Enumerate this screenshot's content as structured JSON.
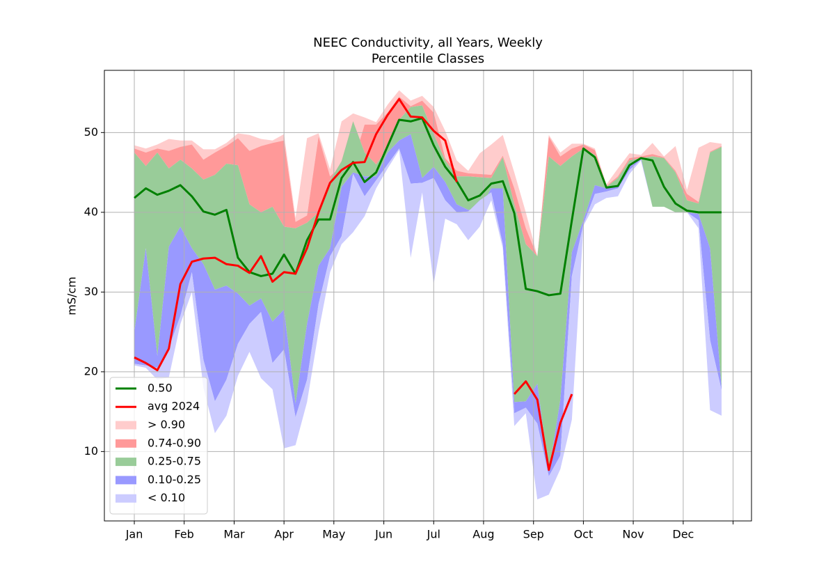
{
  "chart_data": {
    "type": "percentile-bands",
    "title": "NEEC Conductivity, all Years, Weekly",
    "subtitle": "Percentile Classes",
    "ylabel": "mS/cm",
    "x": [
      0,
      1,
      2,
      3,
      4,
      5,
      6,
      7,
      8,
      9,
      10,
      11,
      12,
      13,
      14,
      15,
      16,
      17,
      18,
      19,
      20,
      21,
      22,
      23,
      24,
      25,
      26,
      27,
      28,
      29,
      30,
      31,
      32,
      33,
      34,
      35,
      36,
      37,
      38,
      39,
      40,
      41,
      42,
      43,
      44,
      45,
      46,
      47,
      48,
      49,
      50,
      51
    ],
    "xlim": [
      -2.6,
      53.6
    ],
    "xticks": [
      {
        "value": 0,
        "label": "Jan"
      },
      {
        "value": 4.33,
        "label": "Feb"
      },
      {
        "value": 8.67,
        "label": "Mar"
      },
      {
        "value": 13,
        "label": "Apr"
      },
      {
        "value": 17.33,
        "label": "May"
      },
      {
        "value": 21.67,
        "label": "Jun"
      },
      {
        "value": 26,
        "label": "Jul"
      },
      {
        "value": 30.33,
        "label": "Aug"
      },
      {
        "value": 34.67,
        "label": "Sep"
      },
      {
        "value": 39,
        "label": "Oct"
      },
      {
        "value": 43.33,
        "label": "Nov"
      },
      {
        "value": 47.67,
        "label": "Dec"
      },
      {
        "value": 52,
        "label": null
      }
    ],
    "ylim": [
      1.3,
      57.8
    ],
    "yticks": [
      10,
      20,
      30,
      40,
      50
    ],
    "grid": true,
    "legend": "lower left",
    "series": [
      {
        "name": "0.50",
        "color": "#008000",
        "values": [
          41.8,
          43,
          42.2,
          42.7,
          43.4,
          42,
          40.1,
          39.7,
          40.3,
          34.3,
          32.5,
          32,
          32.3,
          34.7,
          32.3,
          36.5,
          39.1,
          39.1,
          44.3,
          46.3,
          43.8,
          45,
          48.3,
          51.6,
          51.4,
          51.8,
          48.4,
          45.7,
          43.9,
          41.5,
          42.1,
          43.6,
          43.9,
          39.9,
          30.4,
          30.1,
          29.6,
          29.8,
          39,
          48,
          46.9,
          43.1,
          43.3,
          45.9,
          46.8,
          46.5,
          43.2,
          41.1,
          40.2,
          40,
          40,
          40
        ]
      },
      {
        "name": "avg 2024",
        "color": "#ff0000",
        "values": [
          21.8,
          21.1,
          20.2,
          22.9,
          31,
          33.8,
          34.2,
          34.3,
          33.5,
          33.3,
          32.4,
          34.5,
          31.3,
          32.5,
          32.3,
          35.5,
          40,
          43.7,
          45.3,
          46.2,
          46.3,
          49.8,
          52.2,
          54.2,
          52,
          51.9,
          50.2,
          49,
          43.8,
          null,
          null,
          null,
          null,
          17.2,
          18.8,
          16.5,
          7.7,
          13.6,
          17.2,
          null,
          null,
          null,
          null,
          null,
          null,
          null,
          null,
          null,
          null,
          null,
          null,
          null
        ]
      }
    ],
    "bands": [
      {
        "name": "> 0.90",
        "color": "#ffcccc",
        "values": [
          48.4,
          48,
          48.5,
          49.2,
          49,
          49,
          47.9,
          47.9,
          48.7,
          49.9,
          49.7,
          49.2,
          49,
          49.8,
          39.3,
          49.3,
          49.9,
          45.4,
          51.4,
          52.4,
          51.9,
          51.3,
          53.5,
          55.3,
          54,
          54.6,
          53.2,
          50.2,
          46.5,
          45.2,
          47.4,
          48.5,
          49.7,
          45,
          40,
          34.5,
          49.7,
          47.5,
          48.6,
          48.6,
          48,
          43.5,
          45.5,
          47.4,
          47.2,
          48.7,
          47,
          48.3,
          42.8,
          48.1,
          48.8,
          48.6
        ]
      },
      {
        "name": "0.74-0.90",
        "color": "#ff9999",
        "values": [
          48,
          47.5,
          48,
          47.7,
          48.2,
          48.5,
          46.6,
          47.5,
          48.3,
          49.3,
          47.7,
          48.3,
          48.7,
          49,
          38.8,
          39.6,
          49.5,
          44.5,
          45.8,
          46.2,
          51,
          51,
          52.5,
          54.5,
          53.3,
          54,
          52.5,
          46.8,
          45.2,
          44.9,
          44.8,
          44.7,
          47.1,
          43,
          38,
          34.5,
          49.5,
          47,
          48,
          48.5,
          47.8,
          43.3,
          44.5,
          46.8,
          47,
          47.3,
          46.9,
          45.2,
          42.3,
          41.3,
          47.6,
          48.3
        ]
      },
      {
        "name": "0.25-0.75",
        "color": "#99cc99",
        "values": [
          47.5,
          45.8,
          47.5,
          45.5,
          46.6,
          45.5,
          44.1,
          44.7,
          46.1,
          45.9,
          41,
          40,
          40.7,
          38.2,
          38,
          38.7,
          40,
          44,
          46.4,
          51.4,
          47.5,
          46,
          48,
          51.6,
          53.2,
          53.4,
          49.8,
          46.5,
          44.5,
          44.5,
          44.4,
          44.3,
          46.9,
          41,
          36,
          34.5,
          47,
          45.8,
          47,
          48,
          47.2,
          43.2,
          44.3,
          46.5,
          46.8,
          47,
          46.8,
          45,
          41.5,
          41.1,
          47.5,
          48.2
        ]
      },
      {
        "name": "0.10-0.25",
        "color": "#9999ff",
        "values": [
          25,
          35.5,
          22,
          35.7,
          38.2,
          35.5,
          33.5,
          30.3,
          30.8,
          29.8,
          28.3,
          29.2,
          26.3,
          27.8,
          16,
          26,
          33.3,
          35.5,
          43.2,
          45,
          44.5,
          44.5,
          47.5,
          49,
          49.8,
          44.3,
          45.7,
          43.8,
          41,
          40.3,
          40.4,
          43,
          43,
          16.2,
          16.3,
          18.5,
          7.5,
          16.5,
          35,
          39,
          43.4,
          43,
          43.2,
          45.8,
          46.8,
          40.7,
          40.7,
          40,
          40,
          39.8,
          35.5,
          18
        ]
      },
      {
        "name": "< 0.10",
        "color": "#ccccff",
        "values": [
          21,
          20.8,
          20.5,
          23,
          27,
          32.5,
          21.5,
          16.3,
          19,
          23.5,
          26,
          27.5,
          21.1,
          22.8,
          14.3,
          19,
          28.5,
          34.5,
          37,
          44.8,
          42,
          44,
          46,
          48,
          43.6,
          43.7,
          44.3,
          41.5,
          40,
          40.1,
          41.5,
          42.5,
          36,
          14.8,
          15.5,
          13.5,
          6.9,
          9.5,
          32,
          38.5,
          42.3,
          42.6,
          43,
          45.3,
          46.6,
          40.7,
          40.7,
          40,
          40,
          39,
          24,
          17.7
        ],
        "lower": [
          20.8,
          20.5,
          19,
          19.3,
          26,
          30,
          18,
          12.3,
          14.5,
          19.5,
          22.5,
          19.2,
          17.8,
          10.4,
          10.8,
          16.2,
          25,
          32.5,
          36,
          37.5,
          39.5,
          43,
          45.5,
          47.8,
          34.3,
          42.5,
          31,
          39.2,
          38.5,
          36.5,
          38.2,
          41.5,
          35.5,
          13.2,
          14.8,
          4,
          4.6,
          7.8,
          14,
          38.3,
          41,
          41.8,
          42,
          44.8,
          46.5,
          40.7,
          40.7,
          40,
          40,
          38,
          15.2,
          14.5
        ]
      }
    ]
  }
}
